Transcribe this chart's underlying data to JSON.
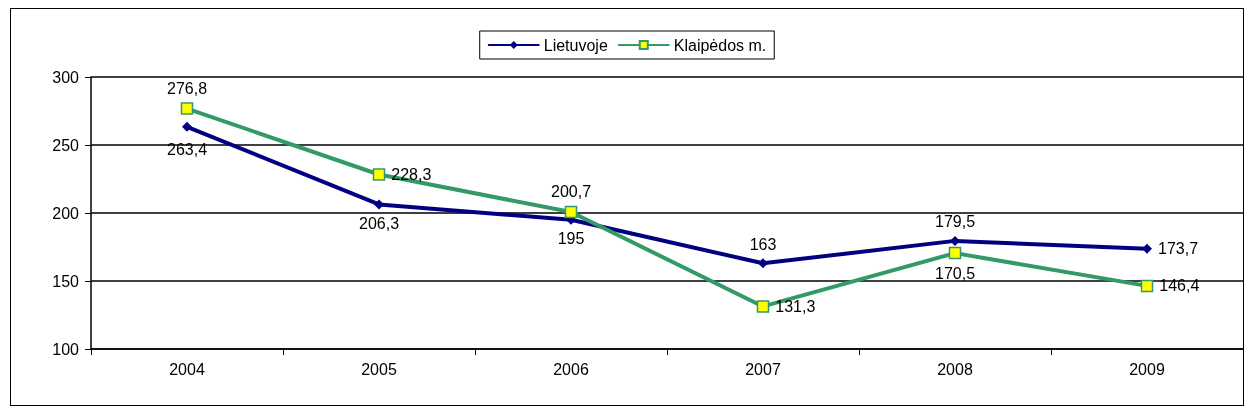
{
  "chart_data": {
    "type": "line",
    "categories": [
      "2004",
      "2005",
      "2006",
      "2007",
      "2008",
      "2009"
    ],
    "series": [
      {
        "name": "Lietuvoje",
        "color": "#000080",
        "marker": "diamond",
        "values": [
          263.4,
          206.3,
          195,
          163,
          179.5,
          173.7
        ],
        "value_labels": [
          "263,4",
          "206,3",
          "195",
          "163",
          "179,5",
          "173,7"
        ]
      },
      {
        "name": "Klaipėdos m.",
        "color": "#339966",
        "marker": "square",
        "values": [
          276.8,
          228.3,
          200.7,
          131.3,
          170.5,
          146.4
        ],
        "value_labels": [
          "276,8",
          "228,3",
          "200,7",
          "131,3",
          "170,5",
          "146,4"
        ]
      }
    ],
    "ylim": [
      100,
      300
    ],
    "yticks": [
      100,
      150,
      200,
      250,
      300
    ],
    "grid": "y",
    "legend": "top",
    "line_style": "solid"
  }
}
